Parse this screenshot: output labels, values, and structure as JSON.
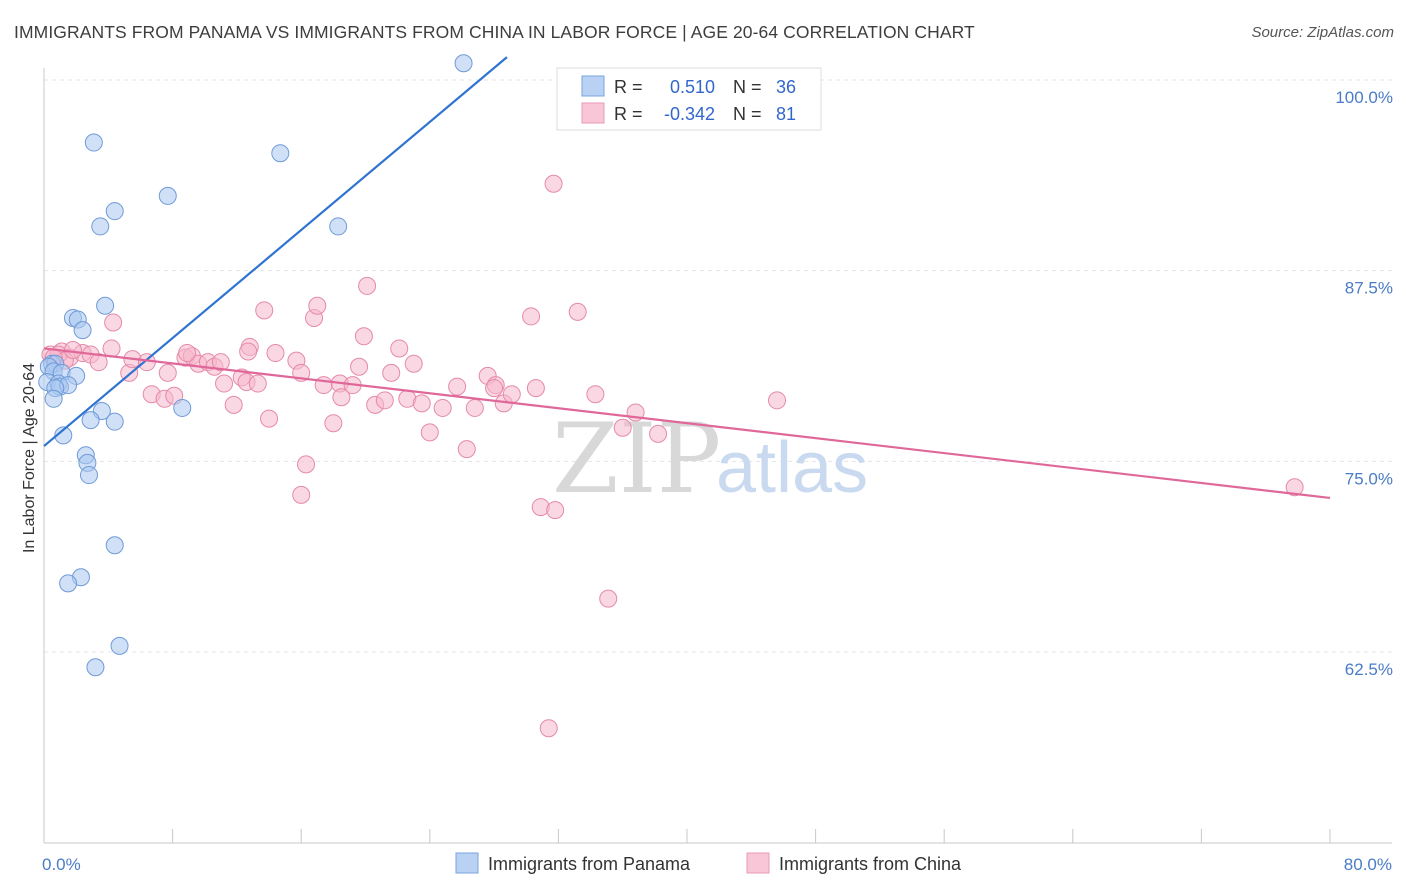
{
  "title": "IMMIGRANTS FROM PANAMA VS IMMIGRANTS FROM CHINA IN LABOR FORCE | AGE 20-64 CORRELATION CHART",
  "source": "Source: ZipAtlas.com",
  "watermark": {
    "zip": "ZIP",
    "atlas": "atlas"
  },
  "legend": {
    "rows": [
      {
        "r_label": "R =",
        "r_value": "0.510",
        "n_label": "N =",
        "n_value": "36"
      },
      {
        "r_label": "R =",
        "r_value": "-0.342",
        "n_label": "N =",
        "n_value": "81"
      }
    ]
  },
  "chart_data": {
    "type": "scatter",
    "ylabel": "In Labor Force | Age 20-64",
    "xlim": [
      0,
      80
    ],
    "ylim": [
      52,
      101.5
    ],
    "x_tick_labels": [
      {
        "value": 0,
        "label": "0.0%"
      },
      {
        "value": 80,
        "label": "80.0%"
      }
    ],
    "x_minor_ticks": [
      0,
      8,
      16,
      24,
      32,
      40,
      48,
      56,
      64,
      72,
      80
    ],
    "y_ticks": [
      {
        "value": 100,
        "label": "100.0%"
      },
      {
        "value": 87.5,
        "label": "87.5%"
      },
      {
        "value": 75,
        "label": "75.0%"
      },
      {
        "value": 62.5,
        "label": "62.5%"
      }
    ],
    "grid": true,
    "colors": {
      "panama_fill": "#aac8f0",
      "panama_stroke": "#6f9ad8",
      "panama_line": "#2f74d0",
      "china_fill": "#f5b8cc",
      "china_stroke": "#e58aa8",
      "china_line": "#e0679a",
      "tick_label": "#4a7cc7"
    },
    "series": [
      {
        "name": "Immigrants from Panama",
        "trend": {
          "x": [
            0,
            28.8
          ],
          "y": [
            76.0,
            101.5
          ]
        },
        "points": [
          [
            26.1,
            101.1
          ],
          [
            3.1,
            95.9
          ],
          [
            14.7,
            95.2
          ],
          [
            7.7,
            92.4
          ],
          [
            4.4,
            91.4
          ],
          [
            3.5,
            90.4
          ],
          [
            18.3,
            90.4
          ],
          [
            3.8,
            85.2
          ],
          [
            1.8,
            84.4
          ],
          [
            2.1,
            84.3
          ],
          [
            2.4,
            83.6
          ],
          [
            0.5,
            81.4
          ],
          [
            0.7,
            81.4
          ],
          [
            0.3,
            81.2
          ],
          [
            0.6,
            80.9
          ],
          [
            1.1,
            80.8
          ],
          [
            2.0,
            80.6
          ],
          [
            0.2,
            80.2
          ],
          [
            0.9,
            80.1
          ],
          [
            1.0,
            79.9
          ],
          [
            1.5,
            80.0
          ],
          [
            0.7,
            79.8
          ],
          [
            0.6,
            79.1
          ],
          [
            8.6,
            78.5
          ],
          [
            3.6,
            78.3
          ],
          [
            2.9,
            77.7
          ],
          [
            4.4,
            77.6
          ],
          [
            1.2,
            76.7
          ],
          [
            2.6,
            75.4
          ],
          [
            2.7,
            74.9
          ],
          [
            2.8,
            74.1
          ],
          [
            4.4,
            69.5
          ],
          [
            2.3,
            67.4
          ],
          [
            1.5,
            67.0
          ],
          [
            4.7,
            62.9
          ],
          [
            3.2,
            61.5
          ]
        ]
      },
      {
        "name": "Immigrants from China",
        "trend": {
          "x": [
            0,
            80
          ],
          "y": [
            82.4,
            72.6
          ]
        },
        "points": [
          [
            0.4,
            82.0
          ],
          [
            1.1,
            82.2
          ],
          [
            1.6,
            81.8
          ],
          [
            0.9,
            82.0
          ],
          [
            2.4,
            82.1
          ],
          [
            1.3,
            81.6
          ],
          [
            0.6,
            81.8
          ],
          [
            1.8,
            82.3
          ],
          [
            2.9,
            82.0
          ],
          [
            3.4,
            81.5
          ],
          [
            4.2,
            82.4
          ],
          [
            4.3,
            84.1
          ],
          [
            5.3,
            80.8
          ],
          [
            5.5,
            81.7
          ],
          [
            6.4,
            81.5
          ],
          [
            6.7,
            79.4
          ],
          [
            7.7,
            80.8
          ],
          [
            7.5,
            79.1
          ],
          [
            8.1,
            79.3
          ],
          [
            8.8,
            81.8
          ],
          [
            9.2,
            81.9
          ],
          [
            9.6,
            81.4
          ],
          [
            8.9,
            82.1
          ],
          [
            10.2,
            81.5
          ],
          [
            10.6,
            81.2
          ],
          [
            11.2,
            80.1
          ],
          [
            11.0,
            81.5
          ],
          [
            12.8,
            82.5
          ],
          [
            12.3,
            80.5
          ],
          [
            11.8,
            78.7
          ],
          [
            12.6,
            80.2
          ],
          [
            13.3,
            80.1
          ],
          [
            12.7,
            82.2
          ],
          [
            14.0,
            77.8
          ],
          [
            14.4,
            82.1
          ],
          [
            15.7,
            81.6
          ],
          [
            13.7,
            84.9
          ],
          [
            16.0,
            80.8
          ],
          [
            16.8,
            84.4
          ],
          [
            16.3,
            74.8
          ],
          [
            16.0,
            72.8
          ],
          [
            17.0,
            85.2
          ],
          [
            17.4,
            80.0
          ],
          [
            18.4,
            80.1
          ],
          [
            18.0,
            77.5
          ],
          [
            18.5,
            79.2
          ],
          [
            19.2,
            80.0
          ],
          [
            19.6,
            81.2
          ],
          [
            19.9,
            83.2
          ],
          [
            20.1,
            86.5
          ],
          [
            20.6,
            78.7
          ],
          [
            21.2,
            79.0
          ],
          [
            21.6,
            80.8
          ],
          [
            22.1,
            82.4
          ],
          [
            22.6,
            79.1
          ],
          [
            23.0,
            81.4
          ],
          [
            23.5,
            78.8
          ],
          [
            24.0,
            76.9
          ],
          [
            24.8,
            78.5
          ],
          [
            25.7,
            79.9
          ],
          [
            26.3,
            75.8
          ],
          [
            26.8,
            78.5
          ],
          [
            27.6,
            80.6
          ],
          [
            28.1,
            80.0
          ],
          [
            28.6,
            78.8
          ],
          [
            28.0,
            79.8
          ],
          [
            29.1,
            79.4
          ],
          [
            30.3,
            84.5
          ],
          [
            30.6,
            79.8
          ],
          [
            30.9,
            72.0
          ],
          [
            31.7,
            93.2
          ],
          [
            31.8,
            71.8
          ],
          [
            33.2,
            84.8
          ],
          [
            34.3,
            79.4
          ],
          [
            35.1,
            66.0
          ],
          [
            36.0,
            77.2
          ],
          [
            36.8,
            78.2
          ],
          [
            38.2,
            76.8
          ],
          [
            45.6,
            79.0
          ],
          [
            31.4,
            57.5
          ],
          [
            77.8,
            73.3
          ]
        ]
      }
    ],
    "legend_position": "top-center"
  }
}
